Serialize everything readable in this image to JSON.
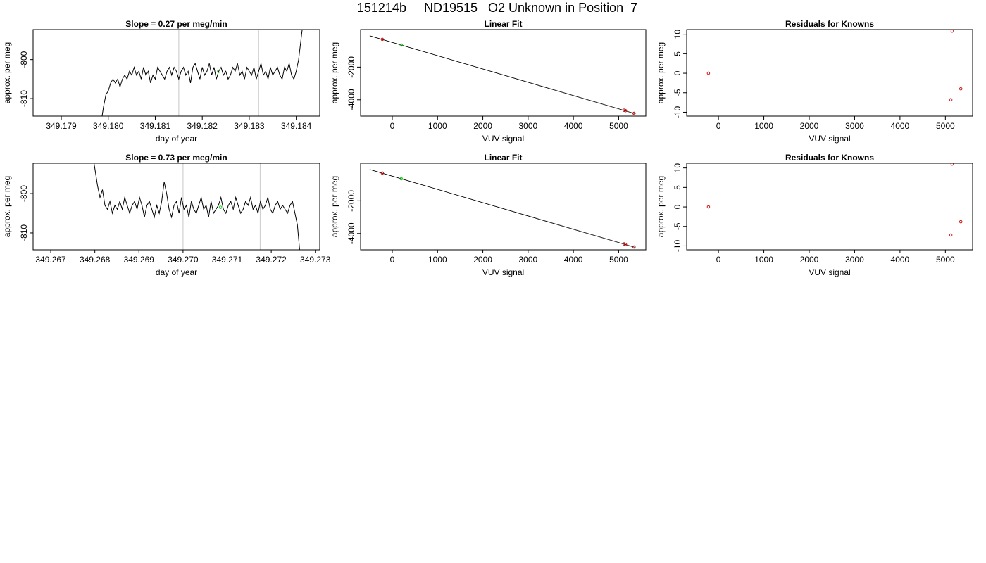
{
  "page_title": "151214b     ND19515   O2 Unknown in Position  7",
  "colors": {
    "line": "#000000",
    "known": "#cc0000",
    "unknown": "#00cc00",
    "vline": "#d0d0d0"
  },
  "chart_data": [
    {
      "type": "line",
      "title": "Slope =  0.27  per meg/min",
      "xlabel": "day of year",
      "ylabel": "approx. per meg",
      "xlim": [
        349.1784,
        349.1845
      ],
      "ylim": [
        -814.5,
        -792.3
      ],
      "xticks": [
        349.179,
        349.18,
        349.181,
        349.182,
        349.183,
        349.184
      ],
      "xtick_labels": [
        "349.179",
        "349.180",
        "349.181",
        "349.182",
        "349.183",
        "349.184"
      ],
      "yticks": [
        -810,
        -800
      ],
      "ytick_labels": [
        "-810",
        "-800"
      ],
      "vlines": [
        349.1815,
        349.1832
      ],
      "unknown_point": [
        349.18235,
        -803.0
      ],
      "series": [
        {
          "x_start": 349.17985,
          "x_end": 349.18415,
          "values": [
            -816,
            -812,
            -809,
            -808,
            -806,
            -805,
            -806,
            -805,
            -807,
            -805,
            -804,
            -805,
            -803,
            -804,
            -802,
            -804,
            -803,
            -805,
            -802,
            -804,
            -803,
            -806,
            -804,
            -805,
            -802,
            -803,
            -804,
            -805,
            -803,
            -802,
            -804,
            -802,
            -803,
            -805,
            -803,
            -802,
            -804,
            -803,
            -806,
            -802,
            -801,
            -803,
            -805,
            -802,
            -804,
            -803,
            -801,
            -804,
            -802,
            -805,
            -803,
            -802,
            -804,
            -803,
            -805,
            -804,
            -802,
            -803,
            -801,
            -804,
            -803,
            -805,
            -802,
            -803,
            -804,
            -802,
            -805,
            -803,
            -801,
            -804,
            -803,
            -805,
            -802,
            -804,
            -803,
            -802,
            -804,
            -805,
            -802,
            -803,
            -801,
            -804,
            -805,
            -803,
            -800,
            -795,
            -790
          ]
        }
      ]
    },
    {
      "type": "scatter",
      "title": "Linear Fit",
      "xlabel": "VUV signal",
      "ylabel": "approx. per meg",
      "xlim": [
        -700,
        5600
      ],
      "ylim": [
        -5000,
        300
      ],
      "xticks": [
        0,
        1000,
        2000,
        3000,
        4000,
        5000
      ],
      "xtick_labels": [
        "0",
        "1000",
        "2000",
        "3000",
        "4000",
        "5000"
      ],
      "yticks": [
        -4000,
        -2000
      ],
      "ytick_labels": [
        "-4000",
        "-2000"
      ],
      "fit_line": [
        [
          -500,
          -80
        ],
        [
          5350,
          -4840
        ]
      ],
      "known_points": [
        [
          -220,
          -300
        ],
        [
          5120,
          -4640
        ],
        [
          5150,
          -4665
        ],
        [
          5340,
          -4830
        ]
      ],
      "unknown_points": [
        [
          200,
          -650
        ]
      ]
    },
    {
      "type": "scatter",
      "title": "Residuals for Knowns",
      "xlabel": "VUV signal",
      "ylabel": "approx. per meg",
      "xlim": [
        -700,
        5600
      ],
      "ylim": [
        -11,
        11.2
      ],
      "xticks": [
        0,
        1000,
        2000,
        3000,
        4000,
        5000
      ],
      "xtick_labels": [
        "0",
        "1000",
        "2000",
        "3000",
        "4000",
        "5000"
      ],
      "yticks": [
        -10,
        -5,
        0,
        5,
        10
      ],
      "ytick_labels": [
        "-10",
        "-5",
        "0",
        "5",
        "10"
      ],
      "known_points": [
        [
          -220,
          0.0
        ],
        [
          5120,
          -6.8
        ],
        [
          5150,
          10.8
        ],
        [
          5340,
          -4.0
        ]
      ]
    },
    {
      "type": "line",
      "title": "Slope =  0.73  per meg/min",
      "xlabel": "day of year",
      "ylabel": "approx. per meg",
      "xlim": [
        349.2666,
        349.2731
      ],
      "ylim": [
        -814.3,
        -792.3
      ],
      "xticks": [
        349.267,
        349.268,
        349.269,
        349.27,
        349.271,
        349.272,
        349.273
      ],
      "xtick_labels": [
        "349.267",
        "349.268",
        "349.269",
        "349.270",
        "349.271",
        "349.272",
        "349.273"
      ],
      "yticks": [
        -810,
        -800
      ],
      "ytick_labels": [
        "-810",
        "-800"
      ],
      "vlines": [
        349.27,
        349.27175
      ],
      "unknown_point": [
        349.27085,
        -803.5
      ],
      "series": [
        {
          "x_start": 349.26795,
          "x_end": 349.27265,
          "values": [
            -790,
            -794,
            -798,
            -801,
            -799,
            -803,
            -804,
            -802,
            -805,
            -803,
            -804,
            -802,
            -804,
            -801,
            -803,
            -805,
            -803,
            -802,
            -804,
            -801,
            -803,
            -806,
            -803,
            -802,
            -804,
            -806,
            -803,
            -805,
            -802,
            -797,
            -800,
            -804,
            -806,
            -803,
            -802,
            -805,
            -801,
            -804,
            -803,
            -806,
            -802,
            -804,
            -805,
            -803,
            -801,
            -804,
            -803,
            -806,
            -802,
            -805,
            -804,
            -803,
            -801,
            -804,
            -805,
            -803,
            -802,
            -804,
            -801,
            -803,
            -805,
            -804,
            -802,
            -803,
            -801,
            -804,
            -803,
            -805,
            -802,
            -804,
            -803,
            -801,
            -804,
            -805,
            -803,
            -802,
            -804,
            -803,
            -804,
            -805,
            -803,
            -802,
            -805,
            -808,
            -815
          ]
        }
      ]
    },
    {
      "type": "scatter",
      "title": "Linear Fit",
      "xlabel": "VUV signal",
      "ylabel": "approx. per meg",
      "xlim": [
        -700,
        5600
      ],
      "ylim": [
        -5000,
        300
      ],
      "xticks": [
        0,
        1000,
        2000,
        3000,
        4000,
        5000
      ],
      "xtick_labels": [
        "0",
        "1000",
        "2000",
        "3000",
        "4000",
        "5000"
      ],
      "yticks": [
        -4000,
        -2000
      ],
      "ytick_labels": [
        "-4000",
        "-2000"
      ],
      "fit_line": [
        [
          -500,
          -80
        ],
        [
          5350,
          -4840
        ]
      ],
      "known_points": [
        [
          -220,
          -300
        ],
        [
          5120,
          -4640
        ],
        [
          5150,
          -4665
        ],
        [
          5340,
          -4830
        ]
      ],
      "unknown_points": [
        [
          200,
          -650
        ]
      ]
    },
    {
      "type": "scatter",
      "title": "Residuals for Knowns",
      "xlabel": "VUV signal",
      "ylabel": "approx. per meg",
      "xlim": [
        -700,
        5600
      ],
      "ylim": [
        -11,
        11.2
      ],
      "xticks": [
        0,
        1000,
        2000,
        3000,
        4000,
        5000
      ],
      "xtick_labels": [
        "0",
        "1000",
        "2000",
        "3000",
        "4000",
        "5000"
      ],
      "yticks": [
        -10,
        -5,
        0,
        5,
        10
      ],
      "ytick_labels": [
        "-10",
        "-5",
        "0",
        "5",
        "10"
      ],
      "known_points": [
        [
          -220,
          0.0
        ],
        [
          5120,
          -7.2
        ],
        [
          5150,
          11.0
        ],
        [
          5340,
          -3.8
        ]
      ]
    }
  ]
}
